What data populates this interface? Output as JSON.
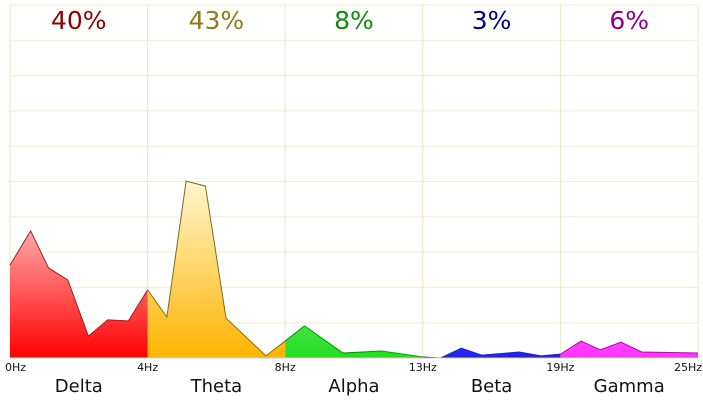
{
  "chart_data": {
    "type": "area",
    "xlim": [
      0,
      5
    ],
    "ylim": [
      0,
      10
    ],
    "xticks": [
      {
        "value": 0,
        "label": "0Hz"
      },
      {
        "value": 1,
        "label": "4Hz"
      },
      {
        "value": 2,
        "label": "8Hz"
      },
      {
        "value": 3,
        "label": "13Hz"
      },
      {
        "value": 4,
        "label": "19Hz"
      },
      {
        "value": 5,
        "label": "25Hz"
      }
    ],
    "yticks": [
      0,
      1,
      2,
      3,
      4,
      5,
      6,
      7,
      8,
      9,
      10
    ],
    "grid": true,
    "series": [
      {
        "name": "Delta",
        "color": "#7a2e2e",
        "fill_top": "#ffeaea",
        "fill_bottom": "#ff0000",
        "label_color": "#8b0000",
        "percent": 40,
        "percent_label": "40%",
        "x": [
          0,
          0.15,
          0.28,
          0.42,
          0.57,
          0.71,
          0.86,
          1.0
        ],
        "values": [
          2.63,
          3.6,
          2.55,
          2.21,
          0.62,
          1.08,
          1.05,
          1.93
        ]
      },
      {
        "name": "Theta",
        "color": "#7a6a2a",
        "fill_top": "#fff6d0",
        "fill_bottom": "#ffb400",
        "label_color": "#8c7a1c",
        "percent": 43,
        "percent_label": "43%",
        "x": [
          1.0,
          1.14,
          1.28,
          1.42,
          1.57,
          1.86,
          2.0
        ],
        "values": [
          1.93,
          1.16,
          5.01,
          4.87,
          1.13,
          0.06,
          0.48
        ]
      },
      {
        "name": "Alpha",
        "color": "#2a7a2a",
        "fill_top": "#d8ffd8",
        "fill_bottom": "#22dd22",
        "label_color": "#138a13",
        "percent": 8,
        "percent_label": "8%",
        "x": [
          2.0,
          2.14,
          2.42,
          2.7,
          3.0
        ],
        "values": [
          0.48,
          0.91,
          0.14,
          0.2,
          0.03
        ]
      },
      {
        "name": "Beta",
        "color": "#2a2a7a",
        "fill_top": "#d8d8ff",
        "fill_bottom": "#2020ee",
        "label_color": "#000080",
        "percent": 3,
        "percent_label": "3%",
        "x": [
          3.0,
          3.13,
          3.28,
          3.43,
          3.7,
          3.86,
          4.0
        ],
        "values": [
          0.03,
          0,
          0.28,
          0.08,
          0.17,
          0.06,
          0.11
        ]
      },
      {
        "name": "Gamma",
        "color": "#7a2a7a",
        "fill_top": "#ffd8ff",
        "fill_bottom": "#ff33ff",
        "label_color": "#8b008b",
        "percent": 6,
        "percent_label": "6%",
        "x": [
          4.0,
          4.15,
          4.29,
          4.44,
          4.59,
          5.0
        ],
        "values": [
          0.11,
          0.48,
          0.23,
          0.45,
          0.17,
          0.14
        ]
      }
    ]
  }
}
